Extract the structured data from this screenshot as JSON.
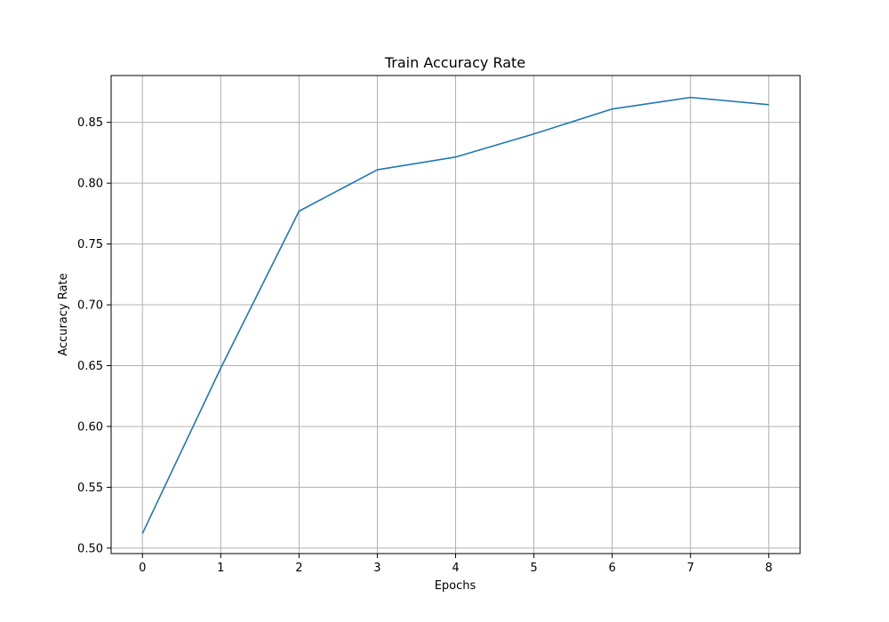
{
  "chart_data": {
    "type": "line",
    "title": "Train Accuracy Rate",
    "xlabel": "Epochs",
    "ylabel": "Accuracy Rate",
    "x": [
      0,
      1,
      2,
      3,
      4,
      5,
      6,
      7,
      8
    ],
    "series": [
      {
        "values": [
          0.512,
          0.648,
          0.777,
          0.811,
          0.8215,
          0.8405,
          0.861,
          0.8705,
          0.8645
        ],
        "color": "#1f77b4"
      }
    ],
    "xlim": [
      -0.4,
      8.4
    ],
    "ylim": [
      0.4955,
      0.8885
    ],
    "x_ticks": [
      0,
      1,
      2,
      3,
      4,
      5,
      6,
      7,
      8
    ],
    "x_tick_labels": [
      "0",
      "1",
      "2",
      "3",
      "4",
      "5",
      "6",
      "7",
      "8"
    ],
    "y_ticks": [
      0.5,
      0.55,
      0.6,
      0.65,
      0.7,
      0.75,
      0.8,
      0.85
    ],
    "y_tick_labels": [
      "0.50",
      "0.55",
      "0.60",
      "0.65",
      "0.70",
      "0.75",
      "0.80",
      "0.85"
    ],
    "grid": true,
    "grid_color": "#b0b0b0",
    "axis_color": "#000000"
  }
}
